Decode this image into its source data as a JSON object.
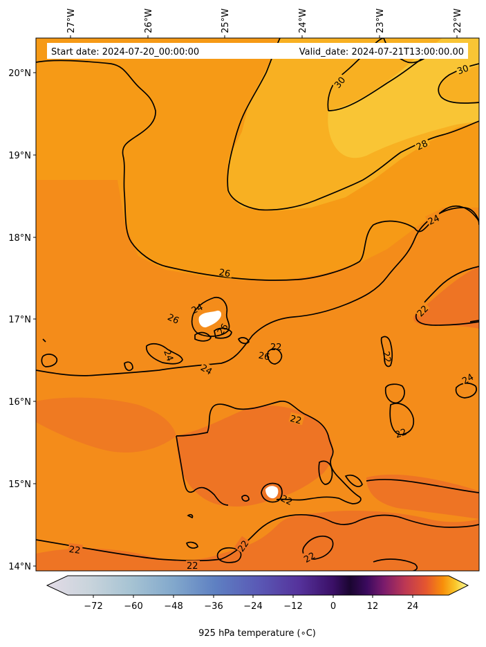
{
  "header": {
    "start_date": "Start date: 2024-07-20_00:00:00",
    "valid_date": "Valid_date: 2024-07-21T13:00:00.00"
  },
  "axes": {
    "lon_labels": [
      "27°W",
      "26°W",
      "25°W",
      "24°W",
      "23°W",
      "22°W"
    ],
    "lat_labels": [
      "20°N",
      "19°N",
      "18°N",
      "17°N",
      "16°N",
      "15°N",
      "14°N"
    ]
  },
  "contour_labels": [
    "30",
    "30",
    "28",
    "24",
    "26",
    "24",
    "26",
    "26",
    "24",
    "24",
    "22",
    "26",
    "22",
    "22",
    "24",
    "22",
    "22",
    "22",
    "22",
    "22",
    "22",
    "22"
  ],
  "colorbar": {
    "title": "925 hPa temperature (∘C)",
    "ticks": [
      "−72",
      "−60",
      "−48",
      "−36",
      "−24",
      "−12",
      "0",
      "12",
      "24"
    ]
  },
  "chart_data": {
    "type": "heatmap",
    "variable": "925 hPa temperature",
    "units": "°C",
    "lon_range": [
      -27.4,
      -21.7
    ],
    "lat_range": [
      13.95,
      20.4
    ],
    "contour_levels": [
      22,
      24,
      26,
      28,
      30
    ],
    "colorbar_range": [
      -82,
      34
    ],
    "colormap": "inferno",
    "colors": {
      "t22": "#ee7424",
      "t24": "#f48c1a",
      "t26": "#f69a16",
      "t28": "#f8b022",
      "t30": "#f9c535",
      "missing": "#ffffff"
    }
  }
}
